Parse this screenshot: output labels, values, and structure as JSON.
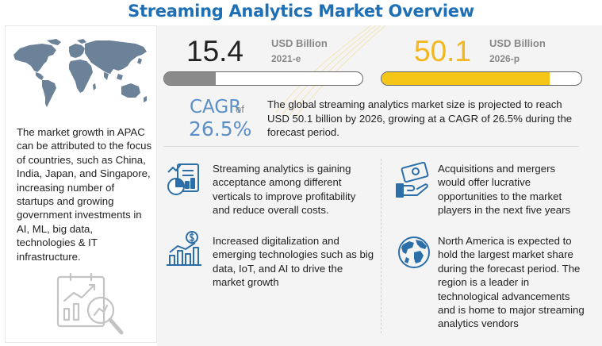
{
  "title": "Streaming Analytics Market Overview",
  "left": {
    "apac_text": "The market growth in APAC can be attributed to the focus of countries, such as China, India, Japan, and Singapore, increasing number of startups and growing government investments in AI, ML, big data, technologies & IT infrastructure.",
    "icons": [
      "world-map-icon",
      "growth-chart-magnifier-icon"
    ]
  },
  "stats": [
    {
      "value": "15.4",
      "unit": "USD Billion",
      "year": "2021-e",
      "fill_fraction": 0.26,
      "fill_color": "#8a8a8a"
    },
    {
      "value": "50.1",
      "unit": "USD Billion",
      "year": "2026-p",
      "fill_fraction": 0.84,
      "fill_color": "#f5c518"
    }
  ],
  "cagr": {
    "label": "CAGR",
    "of": "of",
    "value": "26.5%",
    "description": "The global streaming analytics market size is projected to reach USD 50.1 billion by 2026, growing at a CAGR of 26.5% during the forecast period."
  },
  "facts": [
    {
      "icon": "analytics-report-icon",
      "text": "Streaming analytics is gaining acceptance among different verticals to improve profitability and reduce overall costs."
    },
    {
      "icon": "money-hand-icon",
      "text": "Acquisitions and mergers would offer lucrative opportunities to the market players in the next five years"
    },
    {
      "icon": "dollar-bar-chart-icon",
      "text": "Increased digitalization and emerging technologies such as big data, IoT, and AI to drive the market growth"
    },
    {
      "icon": "globe-icon",
      "text": "North America is expected to hold the largest market share during the forecast period. The region is a leader in technological advancements and is home to major streaming analytics vendors"
    }
  ],
  "colors": {
    "title": "#1f6fb5",
    "accent_blue": "#5b8fc5",
    "accent_orange": "#f3b61c",
    "icon_blue": "#2b6ea8"
  }
}
